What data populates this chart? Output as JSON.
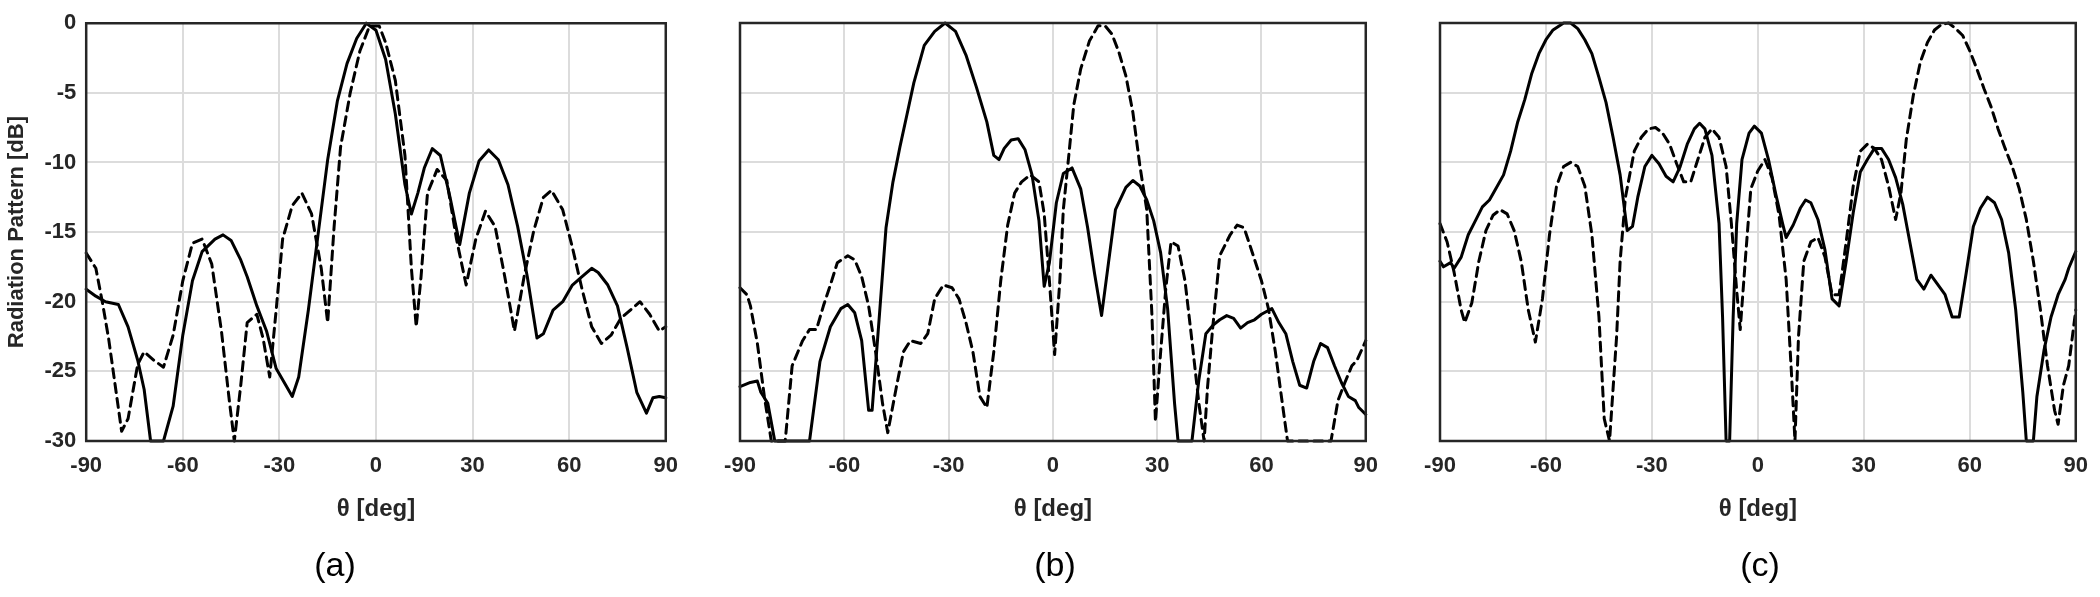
{
  "chart_data": [
    {
      "type": "line",
      "title": "(a)",
      "xlabel": "θ [deg]",
      "ylabel": "Radiation Pattern [dB]",
      "xlim": [
        -90,
        90
      ],
      "xticks": [
        -90,
        -60,
        -30,
        0,
        30,
        60,
        90
      ],
      "ylim": [
        -30,
        0
      ],
      "yticks": [
        -30,
        -25,
        -20,
        -15,
        -10,
        -5,
        0
      ],
      "grid": true,
      "legend": false,
      "marker": "none",
      "series": [
        {
          "color": "#000000",
          "line_style": "solid",
          "x": [
            -90,
            -87,
            -84,
            -80,
            -77,
            -74,
            -72,
            -70,
            -66,
            -63,
            -60,
            -57,
            -54,
            -50,
            -47.5,
            -45,
            -42,
            -40,
            -37,
            -34,
            -31,
            -28,
            -26,
            -24,
            -21,
            -18,
            -15,
            -12,
            -9,
            -6,
            -3,
            0,
            3,
            6,
            9,
            11,
            13,
            15,
            17.5,
            20,
            23,
            26,
            29,
            32,
            35,
            38,
            41,
            44,
            47,
            50,
            52,
            55,
            58,
            61,
            64,
            67,
            69,
            72,
            75,
            78,
            81,
            84,
            86,
            88,
            90
          ],
          "values": [
            -19.1,
            -19.6,
            -20,
            -20.2,
            -21.8,
            -24.2,
            -26.3,
            -30,
            -30,
            -27.5,
            -22.4,
            -18.5,
            -16.4,
            -15.5,
            -15.2,
            -15.6,
            -17,
            -18.2,
            -20.3,
            -22.1,
            -24.8,
            -26,
            -26.8,
            -25.4,
            -20.6,
            -15.2,
            -9.8,
            -5.6,
            -2.9,
            -1.1,
            0,
            -0.5,
            -2.6,
            -6.5,
            -11.6,
            -13.7,
            -12.2,
            -10.4,
            -9,
            -9.5,
            -12.5,
            -15.9,
            -12.2,
            -9.9,
            -9.1,
            -9.8,
            -11.6,
            -14.6,
            -18.2,
            -22.6,
            -22.3,
            -20.6,
            -20,
            -18.8,
            -18.2,
            -17.6,
            -17.9,
            -18.8,
            -20.3,
            -23.3,
            -26.5,
            -28,
            -26.9,
            -26.8,
            -26.9
          ]
        },
        {
          "color": "#000000",
          "line_style": "dashed",
          "x": [
            -90,
            -87,
            -85,
            -83,
            -81,
            -79,
            -77,
            -74,
            -72,
            -69,
            -66,
            -63,
            -60,
            -57,
            -54,
            -51,
            -48,
            -45.5,
            -44,
            -42,
            -40,
            -37,
            -35,
            -33,
            -31,
            -29,
            -26,
            -23,
            -20,
            -17,
            -15,
            -13,
            -11,
            -8,
            -5,
            -2,
            1,
            3,
            6,
            9,
            11,
            12.5,
            14,
            16,
            19,
            22,
            25,
            28,
            31,
            34,
            37,
            40,
            43,
            46,
            49,
            52,
            54.5,
            58,
            61,
            64,
            67,
            70,
            73,
            76,
            79,
            82,
            85,
            88,
            90
          ],
          "values": [
            -16.5,
            -17.6,
            -20,
            -22.7,
            -26,
            -29.3,
            -28.4,
            -24.5,
            -23.6,
            -24.2,
            -24.7,
            -22.4,
            -18.5,
            -15.8,
            -15.5,
            -17.3,
            -22.1,
            -27.2,
            -30,
            -26,
            -21.5,
            -20.9,
            -22.7,
            -25.4,
            -20.6,
            -15.5,
            -13.1,
            -12.2,
            -13.7,
            -17.6,
            -21.5,
            -14.6,
            -8.9,
            -5,
            -2,
            -0.2,
            -0.2,
            -1.4,
            -4.1,
            -9.5,
            -17.6,
            -21.8,
            -18.2,
            -12.2,
            -10.5,
            -11.3,
            -15.5,
            -18.8,
            -15.5,
            -13.5,
            -14.6,
            -18.2,
            -22.1,
            -18.2,
            -14.9,
            -12.5,
            -12,
            -13.4,
            -16.1,
            -19.1,
            -21.8,
            -23,
            -22.4,
            -21.2,
            -20.6,
            -20,
            -20.9,
            -22.1,
            -21.8
          ]
        }
      ]
    },
    {
      "type": "line",
      "title": "(b)",
      "xlabel": "θ [deg]",
      "xlim": [
        -90,
        90
      ],
      "xticks": [
        -90,
        -60,
        -30,
        0,
        30,
        60,
        90
      ],
      "ylim": [
        -30,
        0
      ],
      "yticks": [
        -30,
        -25,
        -20,
        -15,
        -10,
        -5,
        0
      ],
      "tick_labels": "x",
      "grid": true,
      "legend": false,
      "marker": "none",
      "series": [
        {
          "color": "#000000",
          "line_style": "solid",
          "x": [
            -90,
            -87,
            -85,
            -84,
            -82,
            -80,
            -70,
            -67,
            -64,
            -61,
            -59,
            -57,
            -55,
            -53,
            -52,
            -50,
            -48,
            -46,
            -44,
            -42,
            -40,
            -37,
            -34,
            -31,
            -28,
            -25,
            -22,
            -19,
            -17,
            -15.5,
            -14,
            -12,
            -10,
            -8,
            -6,
            -4,
            -2.5,
            -1,
            1,
            3,
            5.5,
            8,
            10,
            12,
            14,
            16,
            18,
            21,
            23,
            25,
            27,
            29,
            31,
            33,
            35,
            36,
            40,
            42,
            44,
            46,
            48,
            50,
            52,
            54,
            56,
            58,
            60,
            63,
            65,
            67,
            69,
            71,
            73,
            75,
            77,
            79,
            81,
            83,
            85,
            87,
            88,
            90
          ],
          "values": [
            -26.1,
            -25.8,
            -25.7,
            -26.5,
            -27.3,
            -30,
            -30,
            -24.3,
            -21.8,
            -20.5,
            -20.2,
            -20.8,
            -22.8,
            -27.8,
            -27.8,
            -21.3,
            -14.7,
            -11.4,
            -8.9,
            -6.6,
            -4.3,
            -1.6,
            -0.6,
            0,
            -0.6,
            -2.3,
            -4.6,
            -7.1,
            -9.5,
            -9.8,
            -9,
            -8.4,
            -8.3,
            -9.1,
            -10.9,
            -14.2,
            -18.9,
            -17.2,
            -12.9,
            -10.8,
            -10.4,
            -11.9,
            -14.7,
            -18,
            -21,
            -17.2,
            -13.4,
            -11.8,
            -11.3,
            -11.7,
            -12.7,
            -14.2,
            -16.5,
            -20.5,
            -27.3,
            -30,
            -30,
            -25.6,
            -22.3,
            -21.7,
            -21.3,
            -21,
            -21.2,
            -21.9,
            -21.5,
            -21.3,
            -20.9,
            -20.5,
            -21.5,
            -22.3,
            -24.3,
            -26,
            -26.2,
            -24.3,
            -23,
            -23.3,
            -24.6,
            -25.8,
            -26.8,
            -27.1,
            -27.6,
            -28.1
          ]
        },
        {
          "color": "#000000",
          "line_style": "dashed",
          "x": [
            -90,
            -88,
            -87,
            -85,
            -83,
            -81,
            -77,
            -75,
            -72,
            -70,
            -68,
            -66,
            -64,
            -62,
            -59,
            -57,
            -55,
            -53,
            -51,
            -49,
            -47.5,
            -45,
            -43,
            -41,
            -38,
            -36,
            -34,
            -31.5,
            -29,
            -27,
            -25,
            -23,
            -21,
            -19,
            -17,
            -15,
            -13,
            -11,
            -9,
            -6.5,
            -4,
            -2.5,
            -1,
            0.5,
            2,
            3,
            4.5,
            6,
            8,
            10.5,
            13,
            15,
            17,
            19,
            21,
            23,
            25,
            27,
            28.5,
            29.5,
            31,
            32.5,
            34,
            36,
            38,
            40,
            42,
            43.5,
            44.5,
            46,
            48,
            51,
            53,
            55,
            57,
            60,
            62,
            64,
            66,
            67.5,
            80,
            82,
            84,
            86,
            87.5,
            90
          ],
          "values": [
            -19,
            -19.5,
            -20.3,
            -23,
            -26.8,
            -30,
            -30,
            -24.6,
            -22.8,
            -22,
            -22,
            -20.3,
            -18.8,
            -17.2,
            -16.7,
            -17,
            -18.2,
            -20.3,
            -23.6,
            -27.3,
            -29.4,
            -26.1,
            -23.6,
            -22.8,
            -23,
            -22.3,
            -19.8,
            -18.8,
            -19,
            -19.8,
            -21.5,
            -23.6,
            -26.8,
            -27.6,
            -23.6,
            -18.5,
            -14.5,
            -12.2,
            -11.4,
            -10.9,
            -11.4,
            -13.7,
            -18.5,
            -23.8,
            -18.5,
            -13.4,
            -9.7,
            -5.9,
            -3.3,
            -1.3,
            -0.2,
            -0.2,
            -0.8,
            -2.1,
            -3.8,
            -6.4,
            -10.2,
            -13.4,
            -21,
            -28.6,
            -23.6,
            -19,
            -15.7,
            -16,
            -18.5,
            -22.8,
            -27.3,
            -30,
            -26.1,
            -21.8,
            -16.7,
            -15.2,
            -14.5,
            -14.7,
            -16.2,
            -18.5,
            -20.5,
            -23.6,
            -27.3,
            -30,
            -30,
            -27.1,
            -25.8,
            -24.6,
            -24.2,
            -22.8
          ]
        }
      ]
    },
    {
      "type": "line",
      "title": "(c)",
      "xlabel": "θ [deg]",
      "xlim": [
        -90,
        90
      ],
      "xticks": [
        -90,
        -60,
        -30,
        0,
        30,
        60,
        90
      ],
      "ylim": [
        -30,
        0
      ],
      "yticks": [
        -30,
        -25,
        -20,
        -15,
        -10,
        -5,
        0
      ],
      "tick_labels": "x",
      "grid": true,
      "legend": false,
      "marker": "none",
      "series": [
        {
          "color": "#000000",
          "line_style": "solid",
          "x": [
            -90,
            -89,
            -87,
            -86,
            -84,
            -82,
            -80,
            -78,
            -76,
            -74,
            -72,
            -70,
            -68,
            -66,
            -64,
            -62,
            -60,
            -58,
            -55,
            -53,
            -51,
            -49,
            -47,
            -45,
            -43,
            -41,
            -39,
            -37,
            -35.5,
            -34,
            -32,
            -30,
            -28,
            -26,
            -24,
            -22,
            -20,
            -18,
            -16.5,
            -15,
            -13,
            -11,
            -10,
            -9,
            -8,
            -7,
            -6,
            -4.5,
            -2.5,
            -1,
            1,
            3,
            5,
            7,
            8,
            10,
            12,
            13.5,
            15,
            17,
            19,
            21,
            23,
            25,
            27,
            29,
            31,
            33,
            35,
            37,
            39,
            41,
            43,
            45,
            47,
            49,
            51,
            53,
            55,
            57,
            59,
            61,
            63,
            65,
            67,
            69,
            71,
            73,
            75,
            76,
            78,
            79,
            81,
            83,
            85,
            87,
            88,
            90
          ],
          "values": [
            -17.1,
            -17.5,
            -17.2,
            -17.6,
            -16.8,
            -15.2,
            -14.2,
            -13.2,
            -12.7,
            -11.8,
            -10.9,
            -9.2,
            -7.1,
            -5.5,
            -3.6,
            -2.2,
            -1.2,
            -0.5,
            0,
            0,
            -0.4,
            -1.2,
            -2.2,
            -3.9,
            -5.7,
            -8.2,
            -10.9,
            -14.9,
            -14.6,
            -12.5,
            -10.3,
            -9.5,
            -10.1,
            -11,
            -11.4,
            -10.3,
            -8.7,
            -7.6,
            -7.2,
            -7.6,
            -9.5,
            -14.4,
            -21.1,
            -30,
            -30,
            -21.1,
            -14.4,
            -9.8,
            -7.9,
            -7.4,
            -7.9,
            -9.8,
            -12.2,
            -14.4,
            -15.4,
            -14.5,
            -13.3,
            -12.7,
            -12.9,
            -14.1,
            -16.3,
            -19.8,
            -20.3,
            -17.1,
            -13.6,
            -10.7,
            -9.8,
            -9,
            -9,
            -9.8,
            -11.1,
            -13,
            -15.7,
            -18.4,
            -19.1,
            -18.1,
            -18.8,
            -19.5,
            -21.1,
            -21.1,
            -17.9,
            -14.6,
            -13.3,
            -12.5,
            -12.9,
            -14.1,
            -16.5,
            -20.6,
            -26.5,
            -30,
            -30,
            -26.8,
            -23.5,
            -21.1,
            -19.5,
            -18.4,
            -17.6,
            -16.4
          ]
        },
        {
          "color": "#000000",
          "line_style": "dashed",
          "x": [
            -90,
            -88,
            -86,
            -84,
            -83,
            -81,
            -79,
            -77,
            -75,
            -73,
            -71,
            -69,
            -67,
            -65,
            -63,
            -61,
            -59,
            -57,
            -55,
            -53,
            -51,
            -49,
            -47,
            -45,
            -43.5,
            -42,
            -40,
            -39,
            -37.5,
            -35,
            -33,
            -31,
            -29,
            -27,
            -25,
            -23,
            -21,
            -19,
            -17,
            -15,
            -13,
            -11,
            -9,
            -7.5,
            -6,
            -5,
            -3.5,
            -2,
            0,
            2,
            4,
            6,
            8,
            9.5,
            10.5,
            11.5,
            13,
            15,
            17,
            19,
            21,
            23,
            25,
            27,
            29,
            31,
            33,
            35,
            37,
            39,
            40.5,
            42,
            44,
            46,
            48,
            50,
            52,
            54,
            56,
            58,
            60,
            62,
            64,
            66,
            68,
            70,
            72,
            74,
            76,
            78,
            80,
            82,
            84,
            85,
            86.5,
            88,
            90
          ],
          "values": [
            -14.4,
            -15.7,
            -17.9,
            -20.6,
            -21.5,
            -20.1,
            -17.1,
            -14.9,
            -13.8,
            -13.4,
            -13.7,
            -14.9,
            -17.1,
            -20.6,
            -22.9,
            -19.8,
            -15.2,
            -11.7,
            -10.3,
            -10,
            -10.3,
            -11.7,
            -15.2,
            -21.1,
            -28.4,
            -30,
            -22.5,
            -17.1,
            -12.5,
            -9.2,
            -8.2,
            -7.6,
            -7.5,
            -7.9,
            -8.7,
            -10.1,
            -11.4,
            -11.4,
            -9.8,
            -8.2,
            -7.6,
            -8.2,
            -10.3,
            -14.4,
            -19.2,
            -22,
            -16.8,
            -11.9,
            -10.6,
            -9.8,
            -11.1,
            -13.8,
            -18.4,
            -25.1,
            -30,
            -22.5,
            -17.1,
            -15.7,
            -15.4,
            -16.8,
            -19.5,
            -19.5,
            -15.7,
            -11.7,
            -9.2,
            -8.7,
            -9,
            -9.8,
            -11.7,
            -14.1,
            -12.2,
            -8.4,
            -5.2,
            -2.8,
            -1.4,
            -0.5,
            -0.1,
            0,
            -0.4,
            -0.9,
            -2,
            -3.3,
            -4.7,
            -6,
            -7.6,
            -9,
            -10.3,
            -11.9,
            -14.1,
            -17.1,
            -20.6,
            -24.6,
            -27.8,
            -28.8,
            -26,
            -24.6,
            -20.6
          ]
        }
      ]
    }
  ]
}
